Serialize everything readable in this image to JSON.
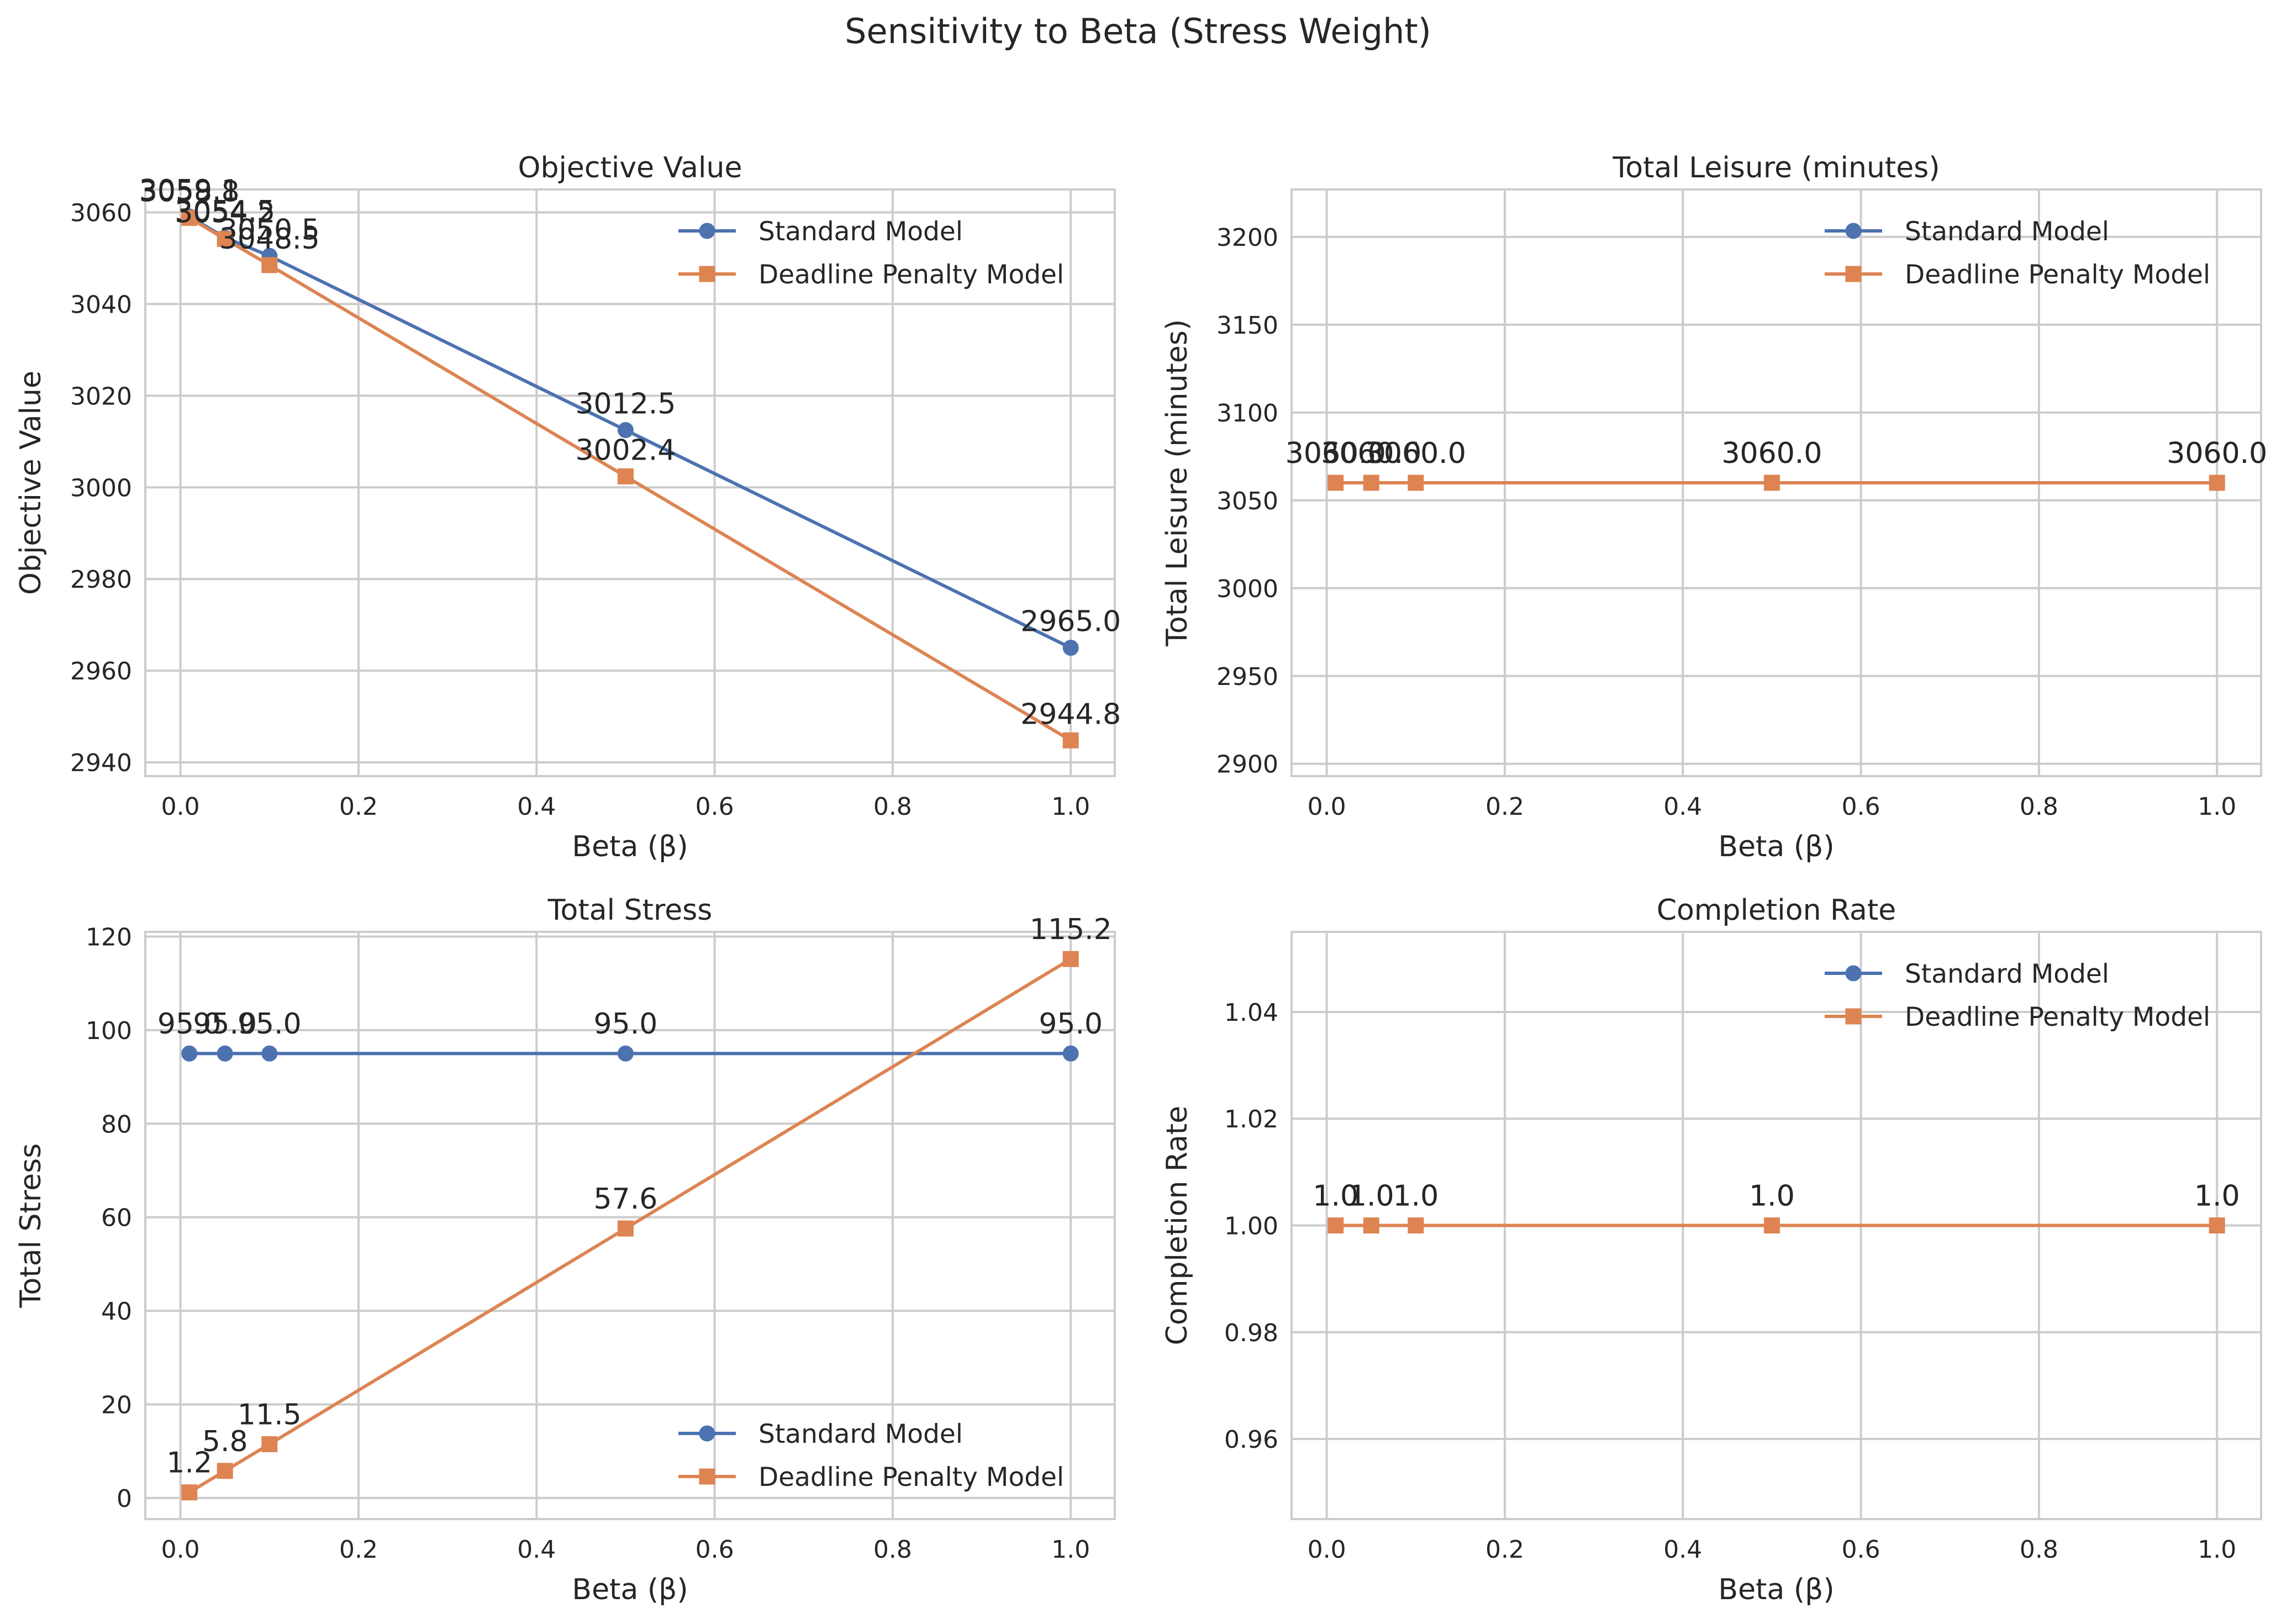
{
  "figure": {
    "title": "Sensitivity to Beta (Stress Weight)"
  },
  "colors": {
    "standard": "#4c72b0",
    "deadline": "#dd8452",
    "grid": "#cccccc",
    "text": "#262626"
  },
  "chart_data": [
    {
      "type": "line",
      "title": "Objective Value",
      "xlabel": "Beta (β)",
      "ylabel": "Objective Value",
      "x": [
        0.01,
        0.05,
        0.1,
        0.5,
        1.0
      ],
      "xlim": [
        -0.0395,
        1.0495
      ],
      "ylim": [
        2937,
        3065
      ],
      "xticks": [
        0.0,
        0.2,
        0.4,
        0.6,
        0.8,
        1.0
      ],
      "xtick_labels": [
        "0.0",
        "0.2",
        "0.4",
        "0.6",
        "0.8",
        "1.0"
      ],
      "yticks": [
        2940,
        2960,
        2980,
        3000,
        3020,
        3040,
        3060
      ],
      "ytick_labels": [
        "2940",
        "2960",
        "2980",
        "3000",
        "3020",
        "3040",
        "3060"
      ],
      "legend": "top-right",
      "series": [
        {
          "name": "Standard Model",
          "marker": "circle",
          "values": [
            3059.1,
            3054.5,
            3050.5,
            3012.5,
            2965.0
          ],
          "labels": [
            "3059.1",
            "3054.5",
            "3050.5",
            "3012.5",
            "2965.0"
          ]
        },
        {
          "name": "Deadline Penalty Model",
          "marker": "square",
          "values": [
            3058.8,
            3054.2,
            3048.5,
            3002.4,
            2944.8
          ],
          "labels": [
            "3058.8",
            "3054.2",
            "3048.5",
            "3002.4",
            "2944.8"
          ]
        }
      ]
    },
    {
      "type": "line",
      "title": "Total Leisure (minutes)",
      "xlabel": "Beta (β)",
      "ylabel": "Total Leisure (minutes)",
      "x": [
        0.01,
        0.05,
        0.1,
        0.5,
        1.0
      ],
      "xlim": [
        -0.0395,
        1.0495
      ],
      "ylim": [
        2893,
        3227
      ],
      "xticks": [
        0.0,
        0.2,
        0.4,
        0.6,
        0.8,
        1.0
      ],
      "xtick_labels": [
        "0.0",
        "0.2",
        "0.4",
        "0.6",
        "0.8",
        "1.0"
      ],
      "yticks": [
        2900,
        2950,
        3000,
        3050,
        3100,
        3150,
        3200
      ],
      "ytick_labels": [
        "2900",
        "2950",
        "3000",
        "3050",
        "3100",
        "3150",
        "3200"
      ],
      "legend": "top-right",
      "series": [
        {
          "name": "Standard Model",
          "marker": "circle",
          "values": [
            3060,
            3060,
            3060,
            3060,
            3060
          ],
          "labels": [
            "3060.0",
            "3060.0",
            "3060.0",
            "3060.0",
            "3060.0"
          ]
        },
        {
          "name": "Deadline Penalty Model",
          "marker": "square",
          "values": [
            3060,
            3060,
            3060,
            3060,
            3060
          ],
          "labels": [
            "3060.0",
            "3060.0",
            "3060.0",
            "3060.0",
            "3060.0"
          ]
        }
      ]
    },
    {
      "type": "line",
      "title": "Total Stress",
      "xlabel": "Beta (β)",
      "ylabel": "Total Stress",
      "x": [
        0.01,
        0.05,
        0.1,
        0.5,
        1.0
      ],
      "xlim": [
        -0.0395,
        1.0495
      ],
      "ylim": [
        -4.5,
        121
      ],
      "xticks": [
        0.0,
        0.2,
        0.4,
        0.6,
        0.8,
        1.0
      ],
      "xtick_labels": [
        "0.0",
        "0.2",
        "0.4",
        "0.6",
        "0.8",
        "1.0"
      ],
      "yticks": [
        0,
        20,
        40,
        60,
        80,
        100,
        120
      ],
      "ytick_labels": [
        "0",
        "20",
        "40",
        "60",
        "80",
        "100",
        "120"
      ],
      "legend": "bottom-right",
      "series": [
        {
          "name": "Standard Model",
          "marker": "circle",
          "values": [
            95.0,
            95.0,
            95.0,
            95.0,
            95.0
          ],
          "labels": [
            "95.0",
            "95.0",
            "95.0",
            "95.0",
            "95.0"
          ]
        },
        {
          "name": "Deadline Penalty Model",
          "marker": "square",
          "values": [
            1.2,
            5.8,
            11.5,
            57.6,
            115.2
          ],
          "labels": [
            "1.2",
            "5.8",
            "11.5",
            "57.6",
            "115.2"
          ]
        }
      ]
    },
    {
      "type": "line",
      "title": "Completion Rate",
      "xlabel": "Beta (β)",
      "ylabel": "Completion Rate",
      "x": [
        0.01,
        0.05,
        0.1,
        0.5,
        1.0
      ],
      "xlim": [
        -0.0395,
        1.0495
      ],
      "ylim": [
        0.945,
        1.055
      ],
      "xticks": [
        0.0,
        0.2,
        0.4,
        0.6,
        0.8,
        1.0
      ],
      "xtick_labels": [
        "0.0",
        "0.2",
        "0.4",
        "0.6",
        "0.8",
        "1.0"
      ],
      "yticks": [
        0.96,
        0.98,
        1.0,
        1.02,
        1.04
      ],
      "ytick_labels": [
        "0.96",
        "0.98",
        "1.00",
        "1.02",
        "1.04"
      ],
      "legend": "top-right",
      "series": [
        {
          "name": "Standard Model",
          "marker": "circle",
          "values": [
            1.0,
            1.0,
            1.0,
            1.0,
            1.0
          ],
          "labels": [
            "1.0",
            "1.0",
            "1.0",
            "1.0",
            "1.0"
          ]
        },
        {
          "name": "Deadline Penalty Model",
          "marker": "square",
          "values": [
            1.0,
            1.0,
            1.0,
            1.0,
            1.0
          ],
          "labels": [
            "1.0",
            "1.0",
            "1.0",
            "1.0",
            "1.0"
          ]
        }
      ]
    }
  ]
}
